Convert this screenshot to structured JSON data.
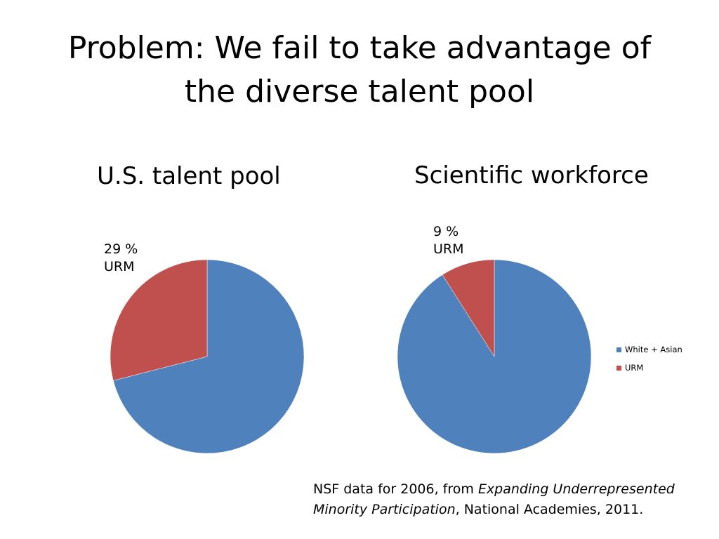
{
  "slide": {
    "title_line1": "Problem:  We fail to take advantage of",
    "title_line2": "the diverse talent pool"
  },
  "colors": {
    "white_asian": "#4F81BD",
    "urm": "#C0504D"
  },
  "chart_data": [
    {
      "type": "pie",
      "title": "U.S. talent pool",
      "categories": [
        "White + Asian",
        "URM"
      ],
      "values": [
        71,
        29
      ],
      "annotations": [
        "29 %",
        "URM"
      ]
    },
    {
      "type": "pie",
      "title": "Scientific workforce",
      "categories": [
        "White + Asian",
        "URM"
      ],
      "values": [
        91,
        9
      ],
      "annotations": [
        "9 %",
        "URM"
      ],
      "legend": {
        "placement": "right",
        "entries": [
          "White + Asian",
          "URM"
        ]
      }
    }
  ],
  "source": {
    "prefix": "NSF data for 2006, from ",
    "italic_line1": "Expanding Underrepresented",
    "italic_line2": "Minority Participation",
    "suffix": ", National Academies, 2011."
  }
}
